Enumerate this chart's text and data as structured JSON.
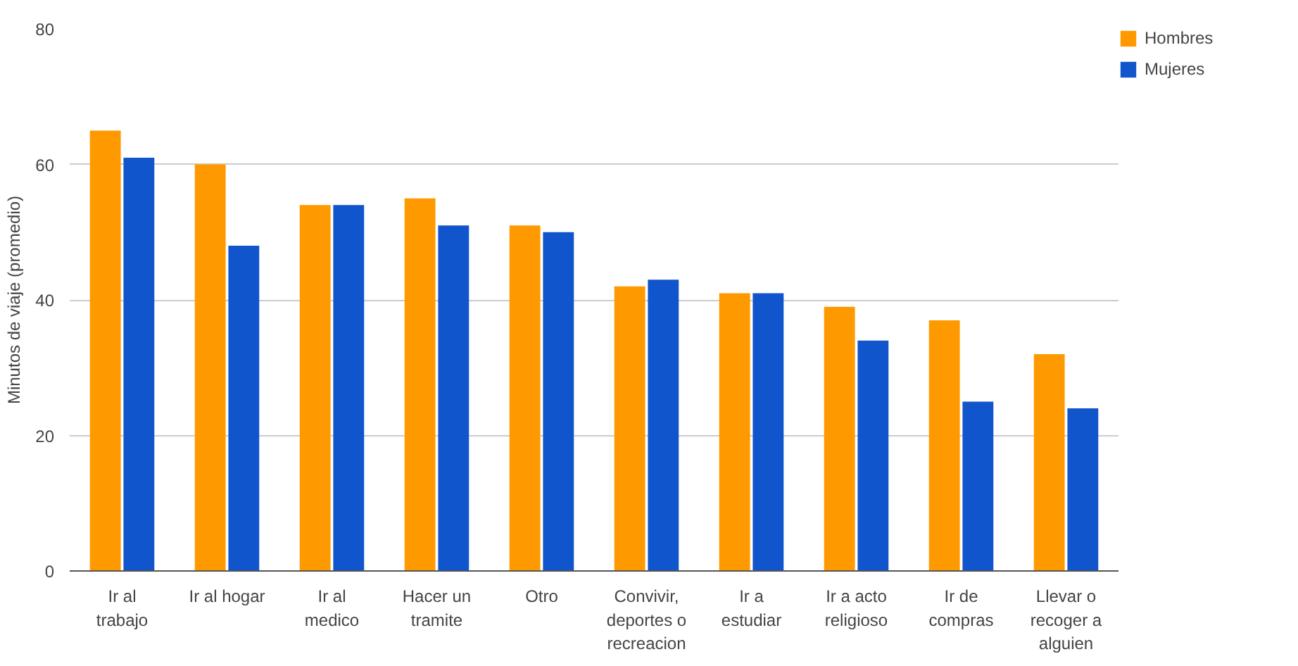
{
  "chart_data": {
    "type": "bar",
    "ylabel": "Minutos de viaje (promedio)",
    "categories": [
      "Ir al trabajo",
      "Ir al hogar",
      "Ir al medico",
      "Hacer un tramite",
      "Otro",
      "Convivir, deportes o recreacion",
      "Ir a estudiar",
      "Ir a acto religioso",
      "Ir de compras",
      "Llevar o recoger a alguien"
    ],
    "series": [
      {
        "name": "Hombres",
        "color": "#ff9900",
        "values": [
          65,
          60,
          54,
          55,
          51,
          42,
          41,
          39,
          37,
          32
        ]
      },
      {
        "name": "Mujeres",
        "color": "#1155cc",
        "values": [
          61,
          48,
          54,
          51,
          50,
          43,
          41,
          34,
          25,
          24
        ]
      }
    ],
    "ylim": [
      0,
      80
    ],
    "yticks": [
      0,
      20,
      40,
      60,
      80
    ],
    "grid": "y",
    "legend": "top right"
  }
}
